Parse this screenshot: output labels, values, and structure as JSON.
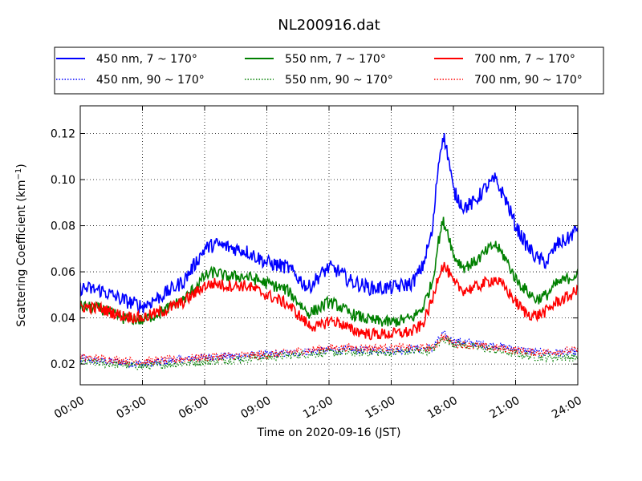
{
  "chart_data": {
    "type": "line",
    "title": "NL200916.dat",
    "xlabel": "Time on 2020-09-16 (JST)",
    "ylabel": "Scattering Coefficient (km",
    "ylabel_sup": "−1",
    "ylabel_close": ")",
    "xlim": [
      "00:00",
      "24:00"
    ],
    "ylim": [
      0.011,
      0.132
    ],
    "x_ticks": [
      "00:00",
      "03:00",
      "06:00",
      "09:00",
      "12:00",
      "15:00",
      "18:00",
      "21:00",
      "24:00"
    ],
    "y_ticks": [
      "0.02",
      "0.04",
      "0.06",
      "0.08",
      "0.10",
      "0.12"
    ],
    "y_tick_values": [
      0.02,
      0.04,
      0.06,
      0.08,
      0.1,
      0.12
    ],
    "grid": true,
    "legend_position": "top, above plot, 3 columns",
    "series": [
      {
        "name": "450 nm, 7 ~ 170°",
        "color": "#0000ff",
        "style": "solid",
        "x": [
          "00:00",
          "01:00",
          "02:00",
          "03:00",
          "04:00",
          "05:00",
          "06:00",
          "06:30",
          "07:00",
          "08:00",
          "09:00",
          "10:00",
          "11:00",
          "11:30",
          "12:00",
          "12:30",
          "13:00",
          "14:00",
          "15:00",
          "16:00",
          "16:30",
          "17:00",
          "17:15",
          "17:30",
          "17:45",
          "18:00",
          "18:30",
          "19:00",
          "19:30",
          "20:00",
          "20:30",
          "21:00",
          "21:30",
          "22:00",
          "22:30",
          "23:00",
          "23:30",
          "24:00"
        ],
        "values": [
          0.053,
          0.052,
          0.048,
          0.045,
          0.05,
          0.056,
          0.07,
          0.072,
          0.071,
          0.069,
          0.064,
          0.062,
          0.053,
          0.058,
          0.062,
          0.06,
          0.056,
          0.053,
          0.053,
          0.055,
          0.062,
          0.078,
          0.105,
          0.12,
          0.11,
          0.095,
          0.088,
          0.09,
          0.096,
          0.1,
          0.092,
          0.08,
          0.072,
          0.066,
          0.064,
          0.072,
          0.074,
          0.079
        ]
      },
      {
        "name": "450 nm, 90 ~ 170°",
        "color": "#0000ff",
        "style": "dotted",
        "x": [
          "00:00",
          "03:00",
          "06:00",
          "09:00",
          "12:00",
          "15:00",
          "17:00",
          "17:30",
          "18:00",
          "20:00",
          "22:00",
          "24:00"
        ],
        "values": [
          0.022,
          0.02,
          0.023,
          0.024,
          0.026,
          0.026,
          0.027,
          0.033,
          0.03,
          0.028,
          0.025,
          0.025
        ]
      },
      {
        "name": "550 nm, 7 ~ 170°",
        "color": "#008000",
        "style": "solid",
        "x": [
          "00:00",
          "01:00",
          "02:00",
          "03:00",
          "04:00",
          "05:00",
          "06:00",
          "06:30",
          "07:00",
          "08:00",
          "09:00",
          "10:00",
          "11:00",
          "11:30",
          "12:00",
          "12:30",
          "13:00",
          "14:00",
          "15:00",
          "16:00",
          "16:30",
          "17:00",
          "17:15",
          "17:30",
          "17:45",
          "18:00",
          "18:30",
          "19:00",
          "19:30",
          "20:00",
          "20:30",
          "21:00",
          "21:30",
          "22:00",
          "22:30",
          "23:00",
          "23:30",
          "24:00"
        ],
        "values": [
          0.045,
          0.044,
          0.04,
          0.039,
          0.043,
          0.048,
          0.058,
          0.06,
          0.058,
          0.058,
          0.055,
          0.052,
          0.042,
          0.044,
          0.047,
          0.045,
          0.042,
          0.039,
          0.038,
          0.04,
          0.044,
          0.056,
          0.072,
          0.082,
          0.077,
          0.067,
          0.062,
          0.064,
          0.068,
          0.072,
          0.066,
          0.057,
          0.052,
          0.048,
          0.05,
          0.055,
          0.057,
          0.059
        ]
      },
      {
        "name": "550 nm, 90 ~ 170°",
        "color": "#008000",
        "style": "dotted",
        "x": [
          "00:00",
          "03:00",
          "06:00",
          "09:00",
          "12:00",
          "15:00",
          "17:00",
          "17:30",
          "18:00",
          "20:00",
          "22:00",
          "24:00"
        ],
        "values": [
          0.021,
          0.019,
          0.021,
          0.023,
          0.025,
          0.025,
          0.026,
          0.031,
          0.029,
          0.026,
          0.023,
          0.023
        ]
      },
      {
        "name": "700 nm, 7 ~ 170°",
        "color": "#ff0000",
        "style": "solid",
        "x": [
          "00:00",
          "01:00",
          "02:00",
          "03:00",
          "04:00",
          "05:00",
          "06:00",
          "06:30",
          "07:00",
          "08:00",
          "09:00",
          "10:00",
          "11:00",
          "11:30",
          "12:00",
          "12:30",
          "13:00",
          "14:00",
          "15:00",
          "16:00",
          "16:30",
          "17:00",
          "17:15",
          "17:30",
          "17:45",
          "18:00",
          "18:30",
          "19:00",
          "19:30",
          "20:00",
          "20:30",
          "21:00",
          "21:30",
          "22:00",
          "22:30",
          "23:00",
          "23:30",
          "24:00"
        ],
        "values": [
          0.045,
          0.044,
          0.041,
          0.04,
          0.043,
          0.047,
          0.054,
          0.055,
          0.054,
          0.054,
          0.05,
          0.046,
          0.037,
          0.036,
          0.039,
          0.038,
          0.035,
          0.033,
          0.033,
          0.034,
          0.037,
          0.048,
          0.058,
          0.063,
          0.06,
          0.055,
          0.052,
          0.053,
          0.055,
          0.057,
          0.053,
          0.047,
          0.042,
          0.041,
          0.043,
          0.047,
          0.049,
          0.052
        ]
      },
      {
        "name": "700 nm, 90 ~ 170°",
        "color": "#ff0000",
        "style": "dotted",
        "x": [
          "00:00",
          "03:00",
          "06:00",
          "09:00",
          "12:00",
          "15:00",
          "17:00",
          "17:30",
          "18:00",
          "20:00",
          "22:00",
          "24:00"
        ],
        "values": [
          0.023,
          0.021,
          0.023,
          0.024,
          0.027,
          0.027,
          0.027,
          0.032,
          0.029,
          0.027,
          0.025,
          0.026
        ]
      }
    ]
  }
}
